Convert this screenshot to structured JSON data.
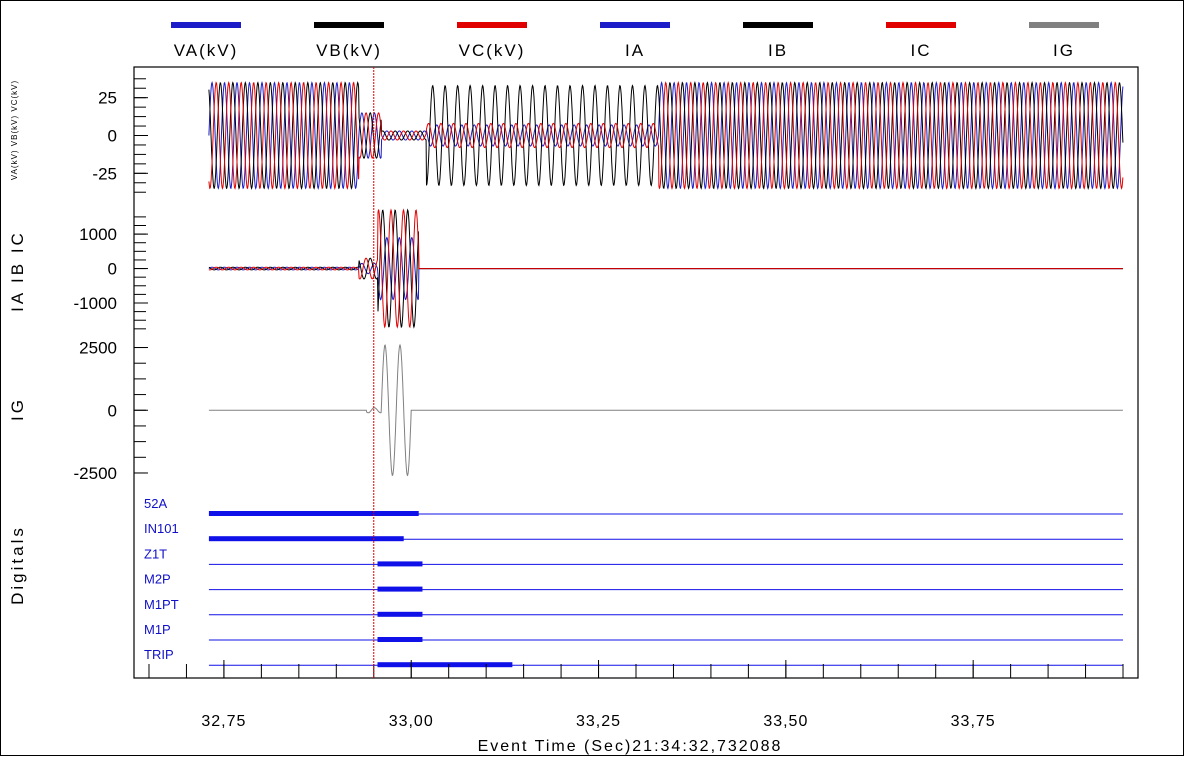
{
  "colors": {
    "va": "#1c1cc8",
    "vb": "#000000",
    "vc": "#e00000",
    "ia": "#1c1cc8",
    "ib": "#000000",
    "ic": "#e00000",
    "ig": "#808080",
    "digital": "#1010e8",
    "cursor": "#e00000"
  },
  "chart_data": {
    "type": "line",
    "x_axis": {
      "title": "Event Time (Sec)21:34:32,732088",
      "range": [
        32.63,
        33.97
      ],
      "ticks": [
        32.75,
        33.0,
        33.25,
        33.5,
        33.75
      ],
      "tick_labels": [
        "32,75",
        "33,00",
        "33,25",
        "33,50",
        "33,75"
      ]
    },
    "cursor_time": 32.95,
    "legend": [
      {
        "name": "VA(kV)",
        "color": "#1c1cc8"
      },
      {
        "name": "VB(kV)",
        "color": "#000000"
      },
      {
        "name": "VC(kV)",
        "color": "#e00000"
      },
      {
        "name": "IA",
        "color": "#1c1cc8"
      },
      {
        "name": "IB",
        "color": "#000000"
      },
      {
        "name": "IC",
        "color": "#e00000"
      },
      {
        "name": "IG",
        "color": "#808080"
      }
    ],
    "panels": [
      {
        "id": "voltage",
        "ylabel": "VA(kV) VB(kV) VC(kV)",
        "ylim": [
          -40,
          40
        ],
        "yticks": [
          25,
          0,
          -25
        ],
        "ytick_labels": [
          "25",
          "0",
          "-25"
        ],
        "series": [
          {
            "name": "VA(kV)",
            "segments": [
              [
                32.73,
                32.93,
                35
              ],
              [
                32.93,
                32.96,
                15
              ],
              [
                32.96,
                33.02,
                3
              ],
              [
                33.02,
                33.33,
                7
              ],
              [
                33.33,
                33.95,
                35
              ]
            ]
          },
          {
            "name": "VB(kV)",
            "segments": [
              [
                32.73,
                32.93,
                35
              ],
              [
                32.93,
                32.96,
                15
              ],
              [
                32.96,
                33.02,
                3
              ],
              [
                33.02,
                33.33,
                33
              ],
              [
                33.33,
                33.95,
                35
              ]
            ]
          },
          {
            "name": "VC(kV)",
            "segments": [
              [
                32.73,
                32.93,
                35
              ],
              [
                32.93,
                32.96,
                15
              ],
              [
                32.96,
                33.02,
                3
              ],
              [
                33.02,
                33.33,
                8
              ],
              [
                33.33,
                33.95,
                35
              ]
            ]
          }
        ]
      },
      {
        "id": "current",
        "ylabel": "IA IB IC",
        "ylim": [
          -1900,
          1700
        ],
        "yticks": [
          1000,
          0,
          -1000
        ],
        "ytick_labels": [
          "1000",
          "0",
          "-1000"
        ],
        "series": [
          {
            "name": "IA",
            "segments": [
              [
                32.73,
                32.93,
                40
              ],
              [
                32.93,
                32.955,
                150
              ],
              [
                32.955,
                33.01,
                900
              ],
              [
                33.01,
                33.95,
                0
              ]
            ]
          },
          {
            "name": "IB",
            "segments": [
              [
                32.73,
                32.93,
                40
              ],
              [
                32.93,
                32.955,
                300
              ],
              [
                32.955,
                33.01,
                1700
              ],
              [
                33.01,
                33.95,
                0
              ]
            ]
          },
          {
            "name": "IC",
            "segments": [
              [
                32.73,
                32.93,
                40
              ],
              [
                32.93,
                32.955,
                300
              ],
              [
                32.955,
                33.01,
                1700
              ],
              [
                33.01,
                33.95,
                0
              ]
            ]
          }
        ]
      },
      {
        "id": "ground",
        "ylabel": "IG",
        "ylim": [
          -2700,
          2800
        ],
        "yticks": [
          2500,
          0,
          -2500
        ],
        "ytick_labels": [
          "2500",
          "0",
          "-2500"
        ],
        "series": [
          {
            "name": "IG",
            "segments": [
              [
                32.73,
                32.94,
                0
              ],
              [
                32.94,
                32.96,
                100
              ],
              [
                32.96,
                33.0,
                2600
              ],
              [
                33.0,
                33.95,
                0
              ]
            ]
          }
        ]
      }
    ],
    "digitals": {
      "ylabel": "Digitals",
      "channels": [
        {
          "name": "52A",
          "active": [
            [
              32.73,
              33.01
            ]
          ]
        },
        {
          "name": "IN101",
          "active": [
            [
              32.73,
              32.99
            ]
          ]
        },
        {
          "name": "Z1T",
          "active": [
            [
              32.955,
              33.015
            ]
          ]
        },
        {
          "name": "M2P",
          "active": [
            [
              32.955,
              33.015
            ]
          ]
        },
        {
          "name": "M1PT",
          "active": [
            [
              32.955,
              33.015
            ]
          ]
        },
        {
          "name": "M1P",
          "active": [
            [
              32.955,
              33.015
            ]
          ]
        },
        {
          "name": "TRIP",
          "active": [
            [
              32.955,
              33.135
            ]
          ]
        }
      ]
    }
  }
}
